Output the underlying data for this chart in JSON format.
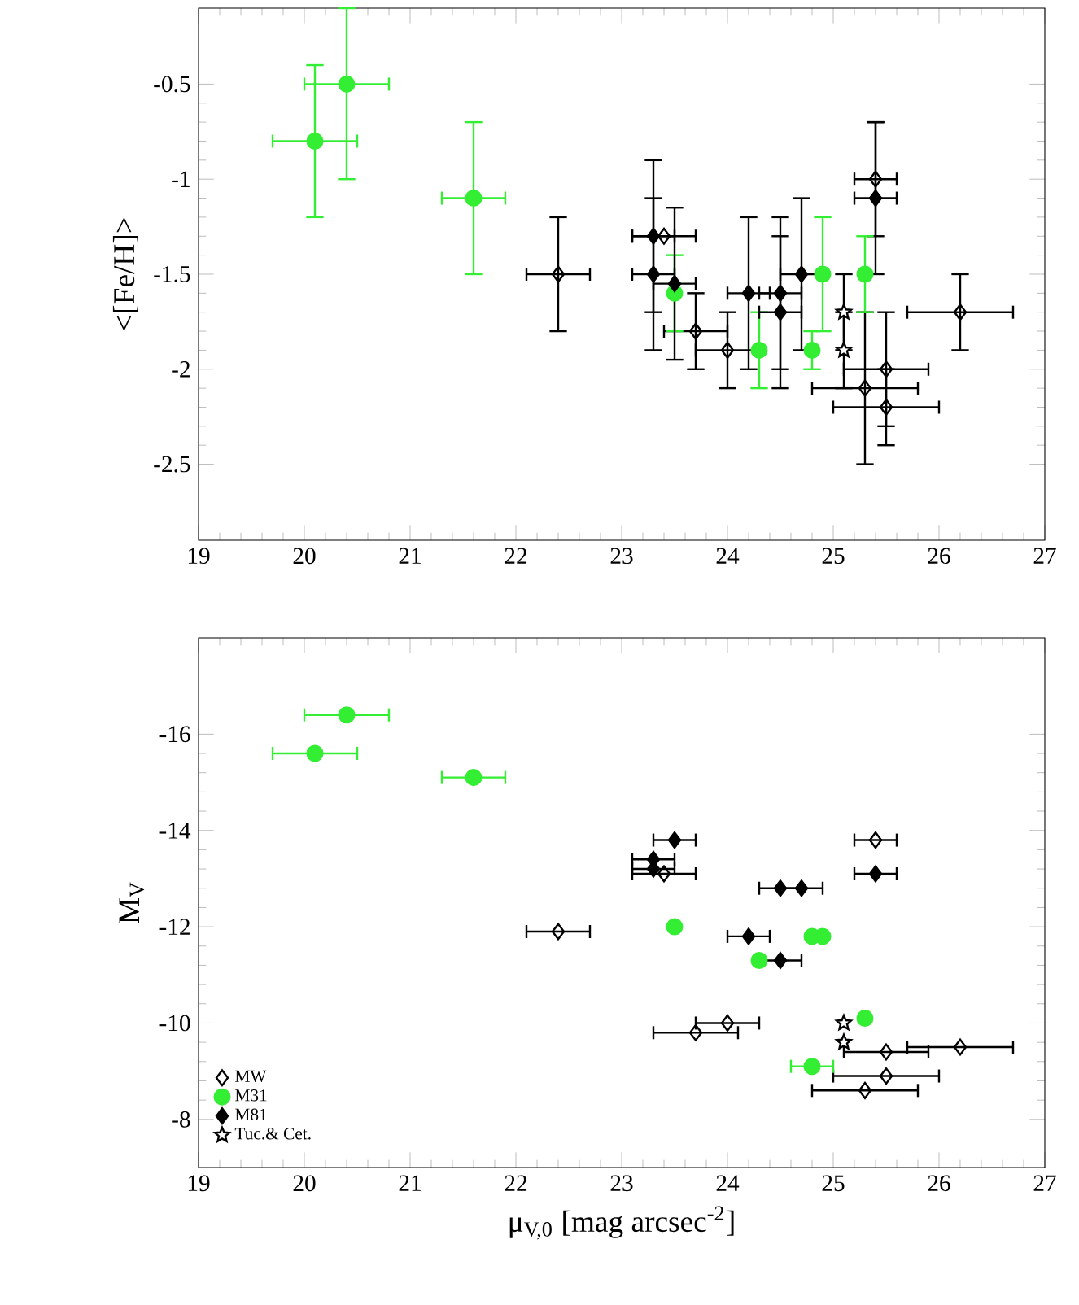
{
  "chart_data": [
    {
      "type": "scatter",
      "ylabel": "<[Fe/H]>",
      "xlim": [
        19,
        27
      ],
      "xticks": [
        19,
        20,
        21,
        22,
        23,
        24,
        25,
        26,
        27
      ],
      "ylim": [
        -2.9,
        -0.1
      ],
      "yticks": [
        -2.5,
        -2,
        -1.5,
        -1,
        -0.5
      ],
      "series": [
        {
          "color": "#000000",
          "marker": "diamond",
          "x": [
            22.4,
            23.4,
            23.7,
            24.0,
            25.4,
            25.3,
            25.5,
            25.5,
            26.2
          ],
          "values": [
            -1.5,
            -1.3,
            -1.8,
            -1.9,
            -1.0,
            -2.1,
            -2.0,
            -2.2,
            -1.7
          ],
          "xerrors": [
            0.3,
            0.3,
            0.3,
            0.3,
            0.2,
            0.5,
            0.4,
            0.5,
            0.5
          ],
          "errors": [
            0.3,
            null,
            0.2,
            0.2,
            0.3,
            0.4,
            0.3,
            0.2,
            0.2
          ]
        },
        {
          "color": "#33ee33",
          "marker": "circle",
          "x": [
            20.1,
            20.4,
            21.6,
            23.5,
            24.3,
            24.8,
            24.9,
            25.3
          ],
          "values": [
            -0.8,
            -0.5,
            -1.1,
            -1.6,
            -1.9,
            -1.9,
            -1.5,
            -1.5
          ],
          "xerrors": [
            0.4,
            0.4,
            0.3,
            null,
            null,
            null,
            null,
            null
          ],
          "errors": [
            0.4,
            [
              -1.0,
              -0.1
            ],
            0.4,
            0.2,
            0.2,
            0.1,
            0.3,
            0.2
          ]
        },
        {
          "color": "#000000",
          "marker": "diamond",
          "x": [
            23.3,
            23.3,
            23.5,
            24.2,
            24.5,
            24.5,
            24.7,
            25.4
          ],
          "values": [
            -1.3,
            -1.5,
            -1.55,
            -1.6,
            -1.6,
            -1.7,
            -1.5,
            -1.1
          ],
          "xerrors": [
            0.2,
            0.2,
            0.2,
            0.2,
            0.2,
            0.2,
            0.2,
            0.2
          ],
          "errors": [
            0.4,
            0.4,
            0.4,
            0.4,
            0.4,
            0.4,
            0.4,
            0.4
          ]
        },
        {
          "color": "#000000",
          "marker": "star",
          "x": [
            25.1,
            25.1
          ],
          "values": [
            -1.7,
            -1.9
          ],
          "errors": [
            0.2,
            0.2
          ]
        }
      ]
    },
    {
      "type": "scatter",
      "xlabel": "μ$_{V,0}$ [mag arcsec$^{-2}$]",
      "ylabel": "M$_{V}$",
      "xlim": [
        19,
        27
      ],
      "xticks": [
        19,
        20,
        21,
        22,
        23,
        24,
        25,
        26,
        27
      ],
      "ylim": [
        -7,
        -18
      ],
      "yticks": [
        -16,
        -14,
        -12,
        -10,
        -8
      ],
      "legend": "bottom left",
      "series": [
        {
          "name": "MW",
          "color": "#000000",
          "marker": "diamond",
          "x": [
            22.4,
            23.4,
            23.7,
            24.0,
            25.4,
            25.3,
            25.5,
            25.5,
            26.2
          ],
          "values": [
            -11.9,
            -13.1,
            -9.8,
            -10.0,
            -13.8,
            -8.6,
            -9.4,
            -8.9,
            -9.5
          ],
          "xerrors": [
            0.3,
            0.3,
            0.4,
            0.3,
            0.2,
            0.5,
            0.4,
            0.5,
            0.5
          ]
        },
        {
          "name": "M31",
          "color": "#33ee33",
          "marker": "circle",
          "x": [
            20.1,
            20.4,
            21.6,
            23.5,
            24.3,
            24.8,
            24.9,
            25.3,
            24.8
          ],
          "values": [
            -15.6,
            -16.4,
            -15.1,
            -12.0,
            -11.3,
            -11.8,
            -11.8,
            -10.1,
            -9.1
          ],
          "xerrors": [
            0.4,
            0.4,
            0.3,
            null,
            null,
            null,
            null,
            null,
            0.2
          ]
        },
        {
          "name": "M81",
          "color": "#000000",
          "marker": "diamond",
          "x": [
            23.3,
            23.3,
            23.5,
            24.2,
            24.5,
            24.7,
            24.5,
            25.4
          ],
          "values": [
            -13.4,
            -13.2,
            -13.8,
            -11.8,
            -12.8,
            -12.8,
            -11.3,
            -13.1
          ],
          "xerrors": [
            0.2,
            0.2,
            0.2,
            0.2,
            0.2,
            0.2,
            0.2,
            0.2
          ]
        },
        {
          "name": "Tuc.& Cet.",
          "color": "#000000",
          "marker": "star",
          "x": [
            25.1,
            25.1
          ],
          "values": [
            -10.0,
            -9.6
          ]
        }
      ]
    }
  ]
}
